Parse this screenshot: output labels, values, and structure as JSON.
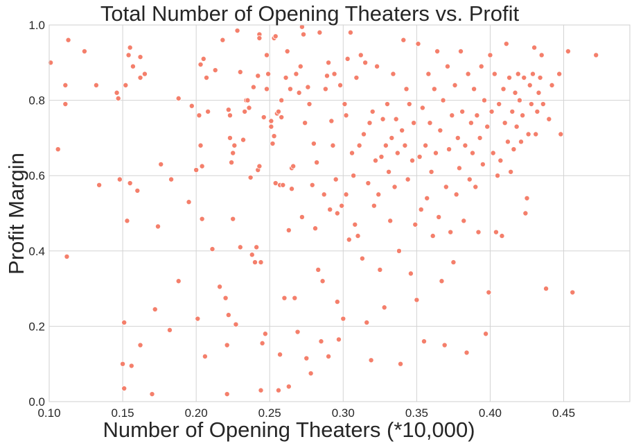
{
  "chart_data": {
    "type": "scatter",
    "title": "Total Number of Opening Theaters vs. Profit",
    "xlabel": "Number of Opening Theaters (*10,000)",
    "ylabel": "Profit Margin",
    "xlim": [
      0.1,
      0.495
    ],
    "ylim": [
      0.0,
      1.0
    ],
    "xticks": [
      0.1,
      0.15,
      0.2,
      0.25,
      0.3,
      0.35,
      0.4,
      0.45
    ],
    "xtick_labels": [
      "0.10",
      "0.15",
      "0.20",
      "0.25",
      "0.30",
      "0.35",
      "0.40",
      "0.45"
    ],
    "yticks": [
      0.0,
      0.2,
      0.4,
      0.6,
      0.8,
      1.0
    ],
    "ytick_labels": [
      "0.0",
      "0.2",
      "0.4",
      "0.6",
      "0.8",
      "1.0"
    ],
    "grid": true,
    "point_color": "#f47f6b",
    "points": [
      [
        0.101,
        0.9
      ],
      [
        0.106,
        0.67
      ],
      [
        0.111,
        0.84
      ],
      [
        0.111,
        0.79
      ],
      [
        0.112,
        0.385
      ],
      [
        0.113,
        0.96
      ],
      [
        0.124,
        0.93
      ],
      [
        0.132,
        0.84
      ],
      [
        0.134,
        0.575
      ],
      [
        0.146,
        0.82
      ],
      [
        0.147,
        0.805
      ],
      [
        0.148,
        0.59
      ],
      [
        0.15,
        0.1
      ],
      [
        0.151,
        0.21
      ],
      [
        0.151,
        0.035
      ],
      [
        0.152,
        0.84
      ],
      [
        0.153,
        0.48
      ],
      [
        0.154,
        0.92
      ],
      [
        0.155,
        0.94
      ],
      [
        0.155,
        0.58
      ],
      [
        0.156,
        0.095
      ],
      [
        0.157,
        0.89
      ],
      [
        0.16,
        0.56
      ],
      [
        0.162,
        0.86
      ],
      [
        0.162,
        0.915
      ],
      [
        0.162,
        0.15
      ],
      [
        0.165,
        0.87
      ],
      [
        0.17,
        0.02
      ],
      [
        0.172,
        0.245
      ],
      [
        0.174,
        0.465
      ],
      [
        0.176,
        0.63
      ],
      [
        0.182,
        0.19
      ],
      [
        0.183,
        0.59
      ],
      [
        0.188,
        0.805
      ],
      [
        0.188,
        0.32
      ],
      [
        0.195,
        0.53
      ],
      [
        0.197,
        0.785
      ],
      [
        0.2,
        0.615
      ],
      [
        0.201,
        0.22
      ],
      [
        0.202,
        0.76
      ],
      [
        0.203,
        0.68
      ],
      [
        0.203,
        0.895
      ],
      [
        0.204,
        0.625
      ],
      [
        0.204,
        0.485
      ],
      [
        0.205,
        0.91
      ],
      [
        0.206,
        0.12
      ],
      [
        0.207,
        0.86
      ],
      [
        0.208,
        0.77
      ],
      [
        0.211,
        0.405
      ],
      [
        0.213,
        0.88
      ],
      [
        0.216,
        0.305
      ],
      [
        0.218,
        0.96
      ],
      [
        0.22,
        0.275
      ],
      [
        0.221,
        0.15
      ],
      [
        0.221,
        0.02
      ],
      [
        0.222,
        0.23
      ],
      [
        0.222,
        0.775
      ],
      [
        0.223,
        0.76
      ],
      [
        0.223,
        0.7
      ],
      [
        0.224,
        0.635
      ],
      [
        0.225,
        0.66
      ],
      [
        0.225,
        0.485
      ],
      [
        0.226,
        0.68
      ],
      [
        0.227,
        0.205
      ],
      [
        0.228,
        0.985
      ],
      [
        0.23,
        0.41
      ],
      [
        0.23,
        0.875
      ],
      [
        0.232,
        0.695
      ],
      [
        0.233,
        0.77
      ],
      [
        0.234,
        0.8
      ],
      [
        0.235,
        0.8
      ],
      [
        0.236,
        0.78
      ],
      [
        0.237,
        0.595
      ],
      [
        0.238,
        0.39
      ],
      [
        0.239,
        0.835
      ],
      [
        0.24,
        0.37
      ],
      [
        0.241,
        0.41
      ],
      [
        0.242,
        0.615
      ],
      [
        0.242,
        0.865
      ],
      [
        0.243,
        0.975
      ],
      [
        0.243,
        0.625
      ],
      [
        0.243,
        0.965
      ],
      [
        0.244,
        0.03
      ],
      [
        0.244,
        0.37
      ],
      [
        0.245,
        0.155
      ],
      [
        0.246,
        0.755
      ],
      [
        0.247,
        0.18
      ],
      [
        0.248,
        0.92
      ],
      [
        0.248,
        0.83
      ],
      [
        0.249,
        0.87
      ],
      [
        0.251,
        0.73
      ],
      [
        0.251,
        0.745
      ],
      [
        0.252,
        0.685
      ],
      [
        0.253,
        0.965
      ],
      [
        0.253,
        0.705
      ],
      [
        0.254,
        0.97
      ],
      [
        0.254,
        0.58
      ],
      [
        0.255,
        0.765
      ],
      [
        0.256,
        0.03
      ],
      [
        0.256,
        0.77
      ],
      [
        0.257,
        0.575
      ],
      [
        0.257,
        0.125
      ],
      [
        0.258,
        0.755
      ],
      [
        0.258,
        0.8
      ],
      [
        0.259,
        0.575
      ],
      [
        0.26,
        0.275
      ],
      [
        0.261,
        0.86
      ],
      [
        0.262,
        0.93
      ],
      [
        0.263,
        0.455
      ],
      [
        0.263,
        0.04
      ],
      [
        0.264,
        0.83
      ],
      [
        0.265,
        0.565
      ],
      [
        0.265,
        0.62
      ],
      [
        0.266,
        0.625
      ],
      [
        0.267,
        0.275
      ],
      [
        0.268,
        0.87
      ],
      [
        0.269,
        0.185
      ],
      [
        0.27,
        0.82
      ],
      [
        0.271,
        0.89
      ],
      [
        0.272,
        0.995
      ],
      [
        0.272,
        0.49
      ],
      [
        0.273,
        0.975
      ],
      [
        0.274,
        0.74
      ],
      [
        0.275,
        0.115
      ],
      [
        0.276,
        0.835
      ],
      [
        0.277,
        0.79
      ],
      [
        0.278,
        0.075
      ],
      [
        0.279,
        0.575
      ],
      [
        0.28,
        0.685
      ],
      [
        0.281,
        0.46
      ],
      [
        0.282,
        0.635
      ],
      [
        0.283,
        0.35
      ],
      [
        0.284,
        0.98
      ],
      [
        0.285,
        0.16
      ],
      [
        0.286,
        0.32
      ],
      [
        0.287,
        0.55
      ],
      [
        0.288,
        0.83
      ],
      [
        0.289,
        0.865
      ],
      [
        0.29,
        0.9
      ],
      [
        0.29,
        0.12
      ],
      [
        0.291,
        0.51
      ],
      [
        0.292,
        0.745
      ],
      [
        0.293,
        0.68
      ],
      [
        0.294,
        0.87
      ],
      [
        0.295,
        0.59
      ],
      [
        0.296,
        0.5
      ],
      [
        0.296,
        0.265
      ],
      [
        0.297,
        0.165
      ],
      [
        0.298,
        0.84
      ],
      [
        0.299,
        0.52
      ],
      [
        0.3,
        0.22
      ],
      [
        0.301,
        0.79
      ],
      [
        0.302,
        0.76
      ],
      [
        0.302,
        0.55
      ],
      [
        0.303,
        0.91
      ],
      [
        0.304,
        0.43
      ],
      [
        0.305,
        0.98
      ],
      [
        0.306,
        0.66
      ],
      [
        0.307,
        0.6
      ],
      [
        0.308,
        0.47
      ],
      [
        0.309,
        0.86
      ],
      [
        0.31,
        0.44
      ],
      [
        0.311,
        0.68
      ],
      [
        0.312,
        0.92
      ],
      [
        0.313,
        0.38
      ],
      [
        0.314,
        0.71
      ],
      [
        0.315,
        0.9
      ],
      [
        0.316,
        0.21
      ],
      [
        0.317,
        0.58
      ],
      [
        0.318,
        0.74
      ],
      [
        0.319,
        0.11
      ],
      [
        0.32,
        0.77
      ],
      [
        0.321,
        0.52
      ],
      [
        0.322,
        0.64
      ],
      [
        0.323,
        0.89
      ],
      [
        0.324,
        0.55
      ],
      [
        0.325,
        0.35
      ],
      [
        0.326,
        0.65
      ],
      [
        0.327,
        0.75
      ],
      [
        0.328,
        0.25
      ],
      [
        0.329,
        0.68
      ],
      [
        0.33,
        0.79
      ],
      [
        0.331,
        0.61
      ],
      [
        0.332,
        0.48
      ],
      [
        0.333,
        0.7
      ],
      [
        0.334,
        0.87
      ],
      [
        0.335,
        0.57
      ],
      [
        0.336,
        0.75
      ],
      [
        0.337,
        0.66
      ],
      [
        0.338,
        0.4
      ],
      [
        0.339,
        0.1
      ],
      [
        0.34,
        0.72
      ],
      [
        0.341,
        0.96
      ],
      [
        0.342,
        0.68
      ],
      [
        0.343,
        0.83
      ],
      [
        0.344,
        0.59
      ],
      [
        0.345,
        0.79
      ],
      [
        0.346,
        0.34
      ],
      [
        0.347,
        0.64
      ],
      [
        0.348,
        0.74
      ],
      [
        0.349,
        0.47
      ],
      [
        0.35,
        0.27
      ],
      [
        0.351,
        0.95
      ],
      [
        0.352,
        0.65
      ],
      [
        0.353,
        0.51
      ],
      [
        0.354,
        0.78
      ],
      [
        0.355,
        0.16
      ],
      [
        0.356,
        0.68
      ],
      [
        0.357,
        0.54
      ],
      [
        0.358,
        0.87
      ],
      [
        0.359,
        0.74
      ],
      [
        0.36,
        0.61
      ],
      [
        0.361,
        0.44
      ],
      [
        0.362,
        0.83
      ],
      [
        0.363,
        0.66
      ],
      [
        0.364,
        0.93
      ],
      [
        0.365,
        0.49
      ],
      [
        0.366,
        0.72
      ],
      [
        0.367,
        0.32
      ],
      [
        0.368,
        0.8
      ],
      [
        0.369,
        0.15
      ],
      [
        0.37,
        0.57
      ],
      [
        0.371,
        0.89
      ],
      [
        0.372,
        0.67
      ],
      [
        0.373,
        0.45
      ],
      [
        0.374,
        0.76
      ],
      [
        0.375,
        0.37
      ],
      [
        0.376,
        0.84
      ],
      [
        0.377,
        0.55
      ],
      [
        0.378,
        0.7
      ],
      [
        0.379,
        0.62
      ],
      [
        0.38,
        0.93
      ],
      [
        0.381,
        0.77
      ],
      [
        0.382,
        0.48
      ],
      [
        0.383,
        0.68
      ],
      [
        0.384,
        0.13
      ],
      [
        0.385,
        0.87
      ],
      [
        0.386,
        0.59
      ],
      [
        0.387,
        0.74
      ],
      [
        0.388,
        0.66
      ],
      [
        0.389,
        0.83
      ],
      [
        0.39,
        0.57
      ],
      [
        0.391,
        0.76
      ],
      [
        0.392,
        0.45
      ],
      [
        0.393,
        0.7
      ],
      [
        0.394,
        0.89
      ],
      [
        0.395,
        0.63
      ],
      [
        0.396,
        0.8
      ],
      [
        0.397,
        0.18
      ],
      [
        0.398,
        0.73
      ],
      [
        0.399,
        0.29
      ],
      [
        0.4,
        0.92
      ],
      [
        0.401,
        0.77
      ],
      [
        0.402,
        0.66
      ],
      [
        0.403,
        0.87
      ],
      [
        0.404,
        0.45
      ],
      [
        0.405,
        0.6
      ],
      [
        0.406,
        0.79
      ],
      [
        0.407,
        0.64
      ],
      [
        0.408,
        0.44
      ],
      [
        0.409,
        0.83
      ],
      [
        0.41,
        0.74
      ],
      [
        0.411,
        0.95
      ],
      [
        0.412,
        0.69
      ],
      [
        0.413,
        0.86
      ],
      [
        0.414,
        0.61
      ],
      [
        0.415,
        0.77
      ],
      [
        0.416,
        0.67
      ],
      [
        0.417,
        0.82
      ],
      [
        0.418,
        0.73
      ],
      [
        0.419,
        0.87
      ],
      [
        0.42,
        0.8
      ],
      [
        0.421,
        0.69
      ],
      [
        0.422,
        0.76
      ],
      [
        0.423,
        0.86
      ],
      [
        0.424,
        0.5
      ],
      [
        0.425,
        0.54
      ],
      [
        0.426,
        0.71
      ],
      [
        0.427,
        0.84
      ],
      [
        0.428,
        0.79
      ],
      [
        0.429,
        0.87
      ],
      [
        0.43,
        0.94
      ],
      [
        0.431,
        0.71
      ],
      [
        0.432,
        0.77
      ],
      [
        0.433,
        0.82
      ],
      [
        0.434,
        0.86
      ],
      [
        0.435,
        0.92
      ],
      [
        0.436,
        0.79
      ],
      [
        0.438,
        0.3
      ],
      [
        0.44,
        0.75
      ],
      [
        0.442,
        0.84
      ],
      [
        0.447,
        0.87
      ],
      [
        0.448,
        0.71
      ],
      [
        0.453,
        0.93
      ],
      [
        0.456,
        0.29
      ],
      [
        0.472,
        0.92
      ]
    ]
  }
}
